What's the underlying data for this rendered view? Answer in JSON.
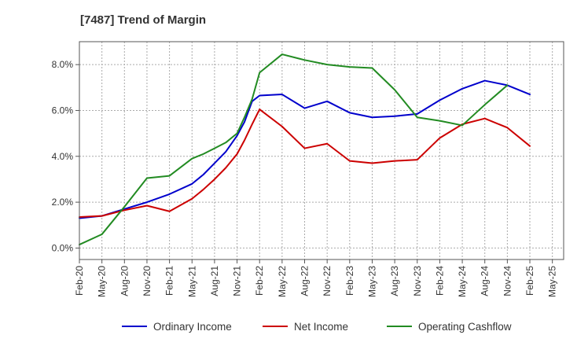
{
  "chart_data": {
    "type": "line",
    "title": "[7487]  Trend of Margin",
    "xlabel": "",
    "ylabel": "",
    "x": [
      "Feb-20",
      "May-20",
      "Aug-20",
      "Nov-20",
      "Feb-21",
      "May-21",
      "Aug-21",
      "Nov-21",
      "Feb-22",
      "May-22",
      "Aug-22",
      "Nov-22",
      "Feb-23",
      "May-23",
      "Aug-23",
      "Nov-23",
      "Feb-24",
      "May-24",
      "Aug-24",
      "Nov-24",
      "Feb-25",
      "May-25"
    ],
    "ylim": [
      -0.5,
      9.0
    ],
    "yticks": [
      0.0,
      2.0,
      4.0,
      6.0,
      8.0
    ],
    "ytick_labels": [
      "0.0%",
      "2.0%",
      "4.0%",
      "6.0%",
      "8.0%"
    ],
    "grid": true,
    "legend_position": "bottom",
    "series": [
      {
        "name": "Ordinary Income",
        "color": "#0000cc",
        "points": [
          [
            0,
            1.3
          ],
          [
            1,
            1.4
          ],
          [
            2,
            1.7
          ],
          [
            3,
            2.0
          ],
          [
            4,
            2.35
          ],
          [
            5,
            2.8
          ],
          [
            5.5,
            3.2
          ],
          [
            6,
            3.7
          ],
          [
            6.5,
            4.2
          ],
          [
            7,
            4.9
          ],
          [
            7.33,
            5.5
          ],
          [
            7.67,
            6.4
          ],
          [
            8,
            6.65
          ],
          [
            9,
            6.7
          ],
          [
            10,
            6.1
          ],
          [
            11,
            6.4
          ],
          [
            12,
            5.9
          ],
          [
            13,
            5.7
          ],
          [
            14,
            5.75
          ],
          [
            15,
            5.85
          ],
          [
            16,
            6.45
          ],
          [
            17,
            6.95
          ],
          [
            18,
            7.3
          ],
          [
            19,
            7.1
          ],
          [
            20,
            6.7
          ]
        ]
      },
      {
        "name": "Net Income",
        "color": "#cc0000",
        "points": [
          [
            0,
            1.35
          ],
          [
            1,
            1.4
          ],
          [
            2,
            1.65
          ],
          [
            3,
            1.85
          ],
          [
            4,
            1.6
          ],
          [
            5,
            2.15
          ],
          [
            5.5,
            2.55
          ],
          [
            6,
            3.0
          ],
          [
            6.5,
            3.5
          ],
          [
            7,
            4.1
          ],
          [
            7.33,
            4.7
          ],
          [
            7.67,
            5.4
          ],
          [
            8,
            6.05
          ],
          [
            9,
            5.3
          ],
          [
            10,
            4.35
          ],
          [
            11,
            4.55
          ],
          [
            12,
            3.8
          ],
          [
            13,
            3.7
          ],
          [
            14,
            3.8
          ],
          [
            15,
            3.85
          ],
          [
            16,
            4.8
          ],
          [
            17,
            5.4
          ],
          [
            18,
            5.65
          ],
          [
            19,
            5.25
          ],
          [
            20,
            4.45
          ]
        ]
      },
      {
        "name": "Operating Cashflow",
        "color": "#228b22",
        "points": [
          [
            0,
            0.15
          ],
          [
            1,
            0.6
          ],
          [
            2,
            1.8
          ],
          [
            3,
            3.05
          ],
          [
            4,
            3.15
          ],
          [
            5,
            3.9
          ],
          [
            5.5,
            4.1
          ],
          [
            6,
            4.35
          ],
          [
            6.5,
            4.6
          ],
          [
            7,
            5.0
          ],
          [
            7.33,
            5.7
          ],
          [
            7.67,
            6.5
          ],
          [
            8,
            7.65
          ],
          [
            9,
            8.45
          ],
          [
            10,
            8.2
          ],
          [
            11,
            8.0
          ],
          [
            12,
            7.9
          ],
          [
            13,
            7.85
          ],
          [
            14,
            6.9
          ],
          [
            15,
            5.7
          ],
          [
            16,
            5.55
          ],
          [
            17,
            5.35
          ],
          [
            18,
            6.25
          ],
          [
            19,
            7.1
          ]
        ]
      }
    ]
  }
}
